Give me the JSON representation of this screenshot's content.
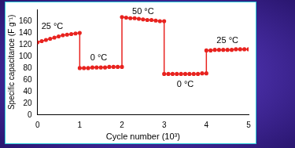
{
  "chart_data": {
    "type": "line",
    "x_label": "Cycle number (10³)",
    "y_label": "Specific capacitance (F g⁻¹)",
    "x": [
      0,
      0.1,
      0.2,
      0.3,
      0.4,
      0.5,
      0.6,
      0.7,
      0.8,
      0.9,
      1.0,
      1.0,
      1.1,
      1.2,
      1.3,
      1.4,
      1.5,
      1.6,
      1.7,
      1.8,
      1.9,
      2.0,
      2.0,
      2.1,
      2.2,
      2.3,
      2.4,
      2.5,
      2.6,
      2.7,
      2.8,
      2.9,
      3.0,
      3.0,
      3.1,
      3.2,
      3.3,
      3.4,
      3.5,
      3.6,
      3.7,
      3.8,
      3.9,
      4.0,
      4.0,
      4.1,
      4.2,
      4.3,
      4.4,
      4.5,
      4.6,
      4.7,
      4.8,
      4.9,
      5.0
    ],
    "values": [
      124,
      126,
      128,
      130,
      132,
      134,
      136,
      137,
      138,
      139,
      140,
      80,
      80,
      80,
      81,
      81,
      81,
      81,
      82,
      82,
      82,
      82,
      167,
      166,
      165,
      165,
      164,
      163,
      162,
      162,
      161,
      160,
      160,
      70,
      70,
      70,
      70,
      70,
      70,
      70,
      70,
      70,
      71,
      71,
      110,
      110,
      111,
      111,
      111,
      111,
      111,
      112,
      112,
      112,
      112
    ],
    "color": "#e8231f",
    "marker": "circle",
    "xlim": [
      0,
      5
    ],
    "xticks": [
      0,
      1,
      2,
      3,
      4,
      5
    ],
    "ylim": [
      0,
      180
    ],
    "yticks": [
      0,
      20,
      40,
      60,
      80,
      100,
      120,
      140,
      160
    ],
    "grid": false,
    "annotations": [
      {
        "text": "25 °C",
        "x": 0.35,
        "y": 150
      },
      {
        "text": "0 °C",
        "x": 1.45,
        "y": 97
      },
      {
        "text": "50 °C",
        "x": 2.5,
        "y": 176
      },
      {
        "text": "0 °C",
        "x": 3.5,
        "y": 52
      },
      {
        "text": "25 °C",
        "x": 4.5,
        "y": 127
      }
    ]
  }
}
